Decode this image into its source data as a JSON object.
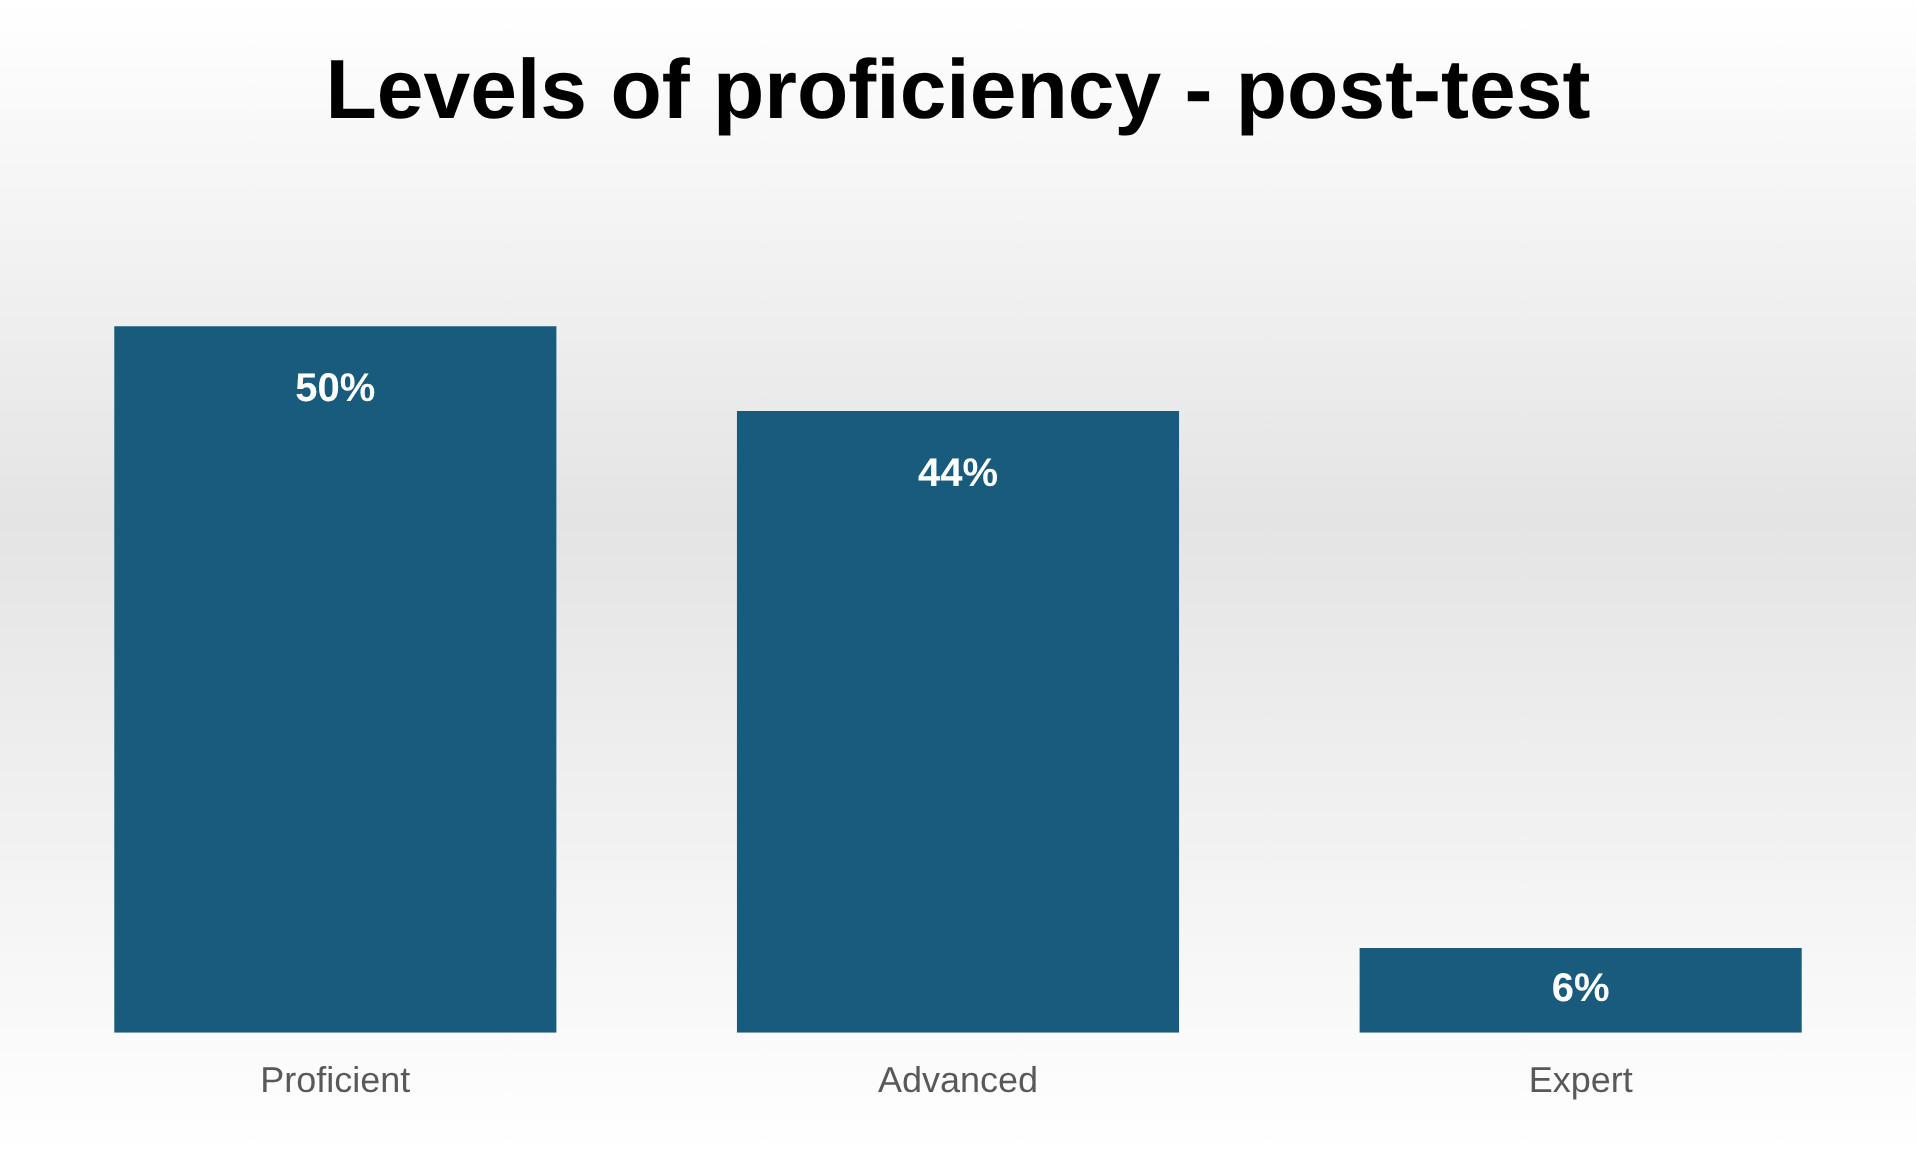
{
  "chart_data": {
    "type": "bar",
    "title": "Levels of proficiency - post-test",
    "categories": [
      "Proficient",
      "Advanced",
      "Expert"
    ],
    "values": [
      50,
      44,
      6
    ],
    "value_labels": [
      "50%",
      "44%",
      "6%"
    ],
    "color": "#185b7c",
    "grid": false,
    "legend": false
  }
}
